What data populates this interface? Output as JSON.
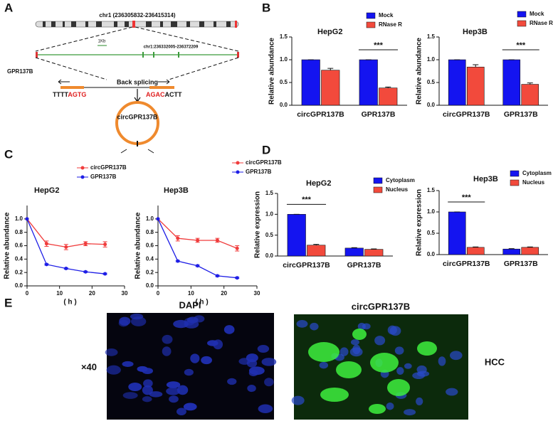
{
  "panel_labels": [
    "A",
    "B",
    "C",
    "D",
    "E"
  ],
  "diagram": {
    "chromosome": "chr1 (236305832-236415314)",
    "scale": "1Kb",
    "locus": "chr1:236332005-236372209",
    "gene": "GPR137B",
    "process": "Back splicing",
    "left_seq": [
      "TTTT",
      "AGTG"
    ],
    "right_seq": [
      "AGAC",
      "ACTT"
    ],
    "circ": "circGPR137B"
  },
  "images": {
    "left_title": "DAPI",
    "right_title": "circGPR137B",
    "magnification": "×40",
    "tissue": "HCC"
  },
  "chart_data": [
    {
      "type": "bar",
      "title": "HepG2",
      "ylabel": "Relative abundance",
      "annotation": "***",
      "categories": [
        "circGPR137B",
        "GPR137B"
      ],
      "series": [
        {
          "name": "Mock",
          "color": "#1414f0",
          "values": [
            1.0,
            1.0
          ],
          "errors": [
            0,
            0
          ]
        },
        {
          "name": "RNase R",
          "color": "#f24a3c",
          "values": [
            0.77,
            0.38
          ],
          "errors": [
            0.04,
            0.02
          ]
        }
      ],
      "ylim": [
        0,
        1.5
      ],
      "yticks": [
        {
          "value": 0,
          "label": "0.0"
        },
        {
          "value": 0.5,
          "label": "0.5"
        },
        {
          "value": 1,
          "label": "1.0"
        },
        {
          "value": 1.5,
          "label": "1.5"
        }
      ]
    },
    {
      "type": "bar",
      "title": "Hep3B",
      "ylabel": "Relative abundance",
      "annotation": "***",
      "categories": [
        "circGPR137B",
        "GPR137B"
      ],
      "series": [
        {
          "name": "Mock",
          "color": "#1414f0",
          "values": [
            1.0,
            1.0
          ],
          "errors": [
            0,
            0
          ]
        },
        {
          "name": "RNase R",
          "color": "#f24a3c",
          "values": [
            0.84,
            0.46
          ],
          "errors": [
            0.05,
            0.03
          ]
        }
      ],
      "ylim": [
        0,
        1.5
      ],
      "yticks": [
        {
          "value": 0,
          "label": "0.0"
        },
        {
          "value": 0.5,
          "label": "0.5"
        },
        {
          "value": 1,
          "label": "1.0"
        },
        {
          "value": 1.5,
          "label": "1.5"
        }
      ]
    },
    {
      "type": "line",
      "title": "HepG2",
      "ylabel": "Relative abundance",
      "xlabel": "( h )",
      "x": [
        0,
        6,
        12,
        18,
        24
      ],
      "series": [
        {
          "name": "circGPR137B",
          "color": "#f03c3c",
          "values": [
            1.0,
            0.63,
            0.58,
            0.63,
            0.62
          ],
          "errors": [
            0,
            0.04,
            0.04,
            0.03,
            0.04
          ]
        },
        {
          "name": "GPR137B",
          "color": "#1e1ee6",
          "values": [
            1.0,
            0.32,
            0.26,
            0.21,
            0.18
          ],
          "errors": [
            0,
            0.01,
            0.01,
            0.01,
            0.01
          ]
        }
      ],
      "xlim": [
        0,
        30
      ],
      "xticks": [
        0,
        10,
        20,
        30
      ],
      "ylim": [
        0,
        1.2
      ],
      "yticks": [
        {
          "value": 0,
          "label": "0.0"
        },
        {
          "value": 0.2,
          "label": "0.2"
        },
        {
          "value": 0.4,
          "label": "0.4"
        },
        {
          "value": 0.6,
          "label": "0.6"
        },
        {
          "value": 0.8,
          "label": "0.8"
        },
        {
          "value": 1,
          "label": "1.0"
        }
      ]
    },
    {
      "type": "line",
      "title": "Hep3B",
      "ylabel": "Relative abundance",
      "xlabel": "( h )",
      "x": [
        0,
        6,
        12,
        18,
        24
      ],
      "series": [
        {
          "name": "circGPR137B",
          "color": "#f03c3c",
          "values": [
            1.0,
            0.71,
            0.68,
            0.68,
            0.56
          ],
          "errors": [
            0,
            0.04,
            0.03,
            0.03,
            0.04
          ]
        },
        {
          "name": "GPR137B",
          "color": "#1e1ee6",
          "values": [
            1.0,
            0.37,
            0.3,
            0.15,
            0.12
          ],
          "errors": [
            0,
            0.01,
            0.01,
            0.01,
            0.01
          ]
        }
      ],
      "xlim": [
        0,
        30
      ],
      "xticks": [
        0,
        10,
        20,
        30
      ],
      "ylim": [
        0,
        1.2
      ],
      "yticks": [
        {
          "value": 0,
          "label": "0.0"
        },
        {
          "value": 0.2,
          "label": "0.2"
        },
        {
          "value": 0.4,
          "label": "0.4"
        },
        {
          "value": 0.6,
          "label": "0.6"
        },
        {
          "value": 0.8,
          "label": "0.8"
        },
        {
          "value": 1,
          "label": "1.0"
        }
      ]
    },
    {
      "type": "bar",
      "title": "HepG2",
      "ylabel": "Relative expression",
      "annotation": "***",
      "categories": [
        "circGPR137B",
        "GPR137B"
      ],
      "series": [
        {
          "name": "Cytoplasm",
          "color": "#1414f0",
          "values": [
            1.0,
            0.19
          ],
          "errors": [
            0,
            0.01
          ]
        },
        {
          "name": "Nucleus",
          "color": "#f24a3c",
          "values": [
            0.26,
            0.16
          ],
          "errors": [
            0.02,
            0.01
          ]
        }
      ],
      "ylim": [
        0,
        1.5
      ],
      "yticks": [
        {
          "value": 0,
          "label": "0.0"
        },
        {
          "value": 0.5,
          "label": "0.5"
        },
        {
          "value": 1,
          "label": "1.0"
        },
        {
          "value": 1.5,
          "label": "1.5"
        }
      ]
    },
    {
      "type": "bar",
      "title": "Hep3B",
      "ylabel": "Relative expression",
      "annotation": "***",
      "categories": [
        "circGPR137B",
        "GPR137B"
      ],
      "series": [
        {
          "name": "Cytoplasm",
          "color": "#1414f0",
          "values": [
            1.0,
            0.13
          ],
          "errors": [
            0,
            0.01
          ]
        },
        {
          "name": "Nucleus",
          "color": "#f24a3c",
          "values": [
            0.17,
            0.17
          ],
          "errors": [
            0.01,
            0.01
          ]
        }
      ],
      "ylim": [
        0,
        1.5
      ],
      "yticks": [
        {
          "value": 0,
          "label": "0.0"
        },
        {
          "value": 0.5,
          "label": "0.5"
        },
        {
          "value": 1,
          "label": "1.0"
        },
        {
          "value": 1.5,
          "label": "1.5"
        }
      ]
    }
  ]
}
